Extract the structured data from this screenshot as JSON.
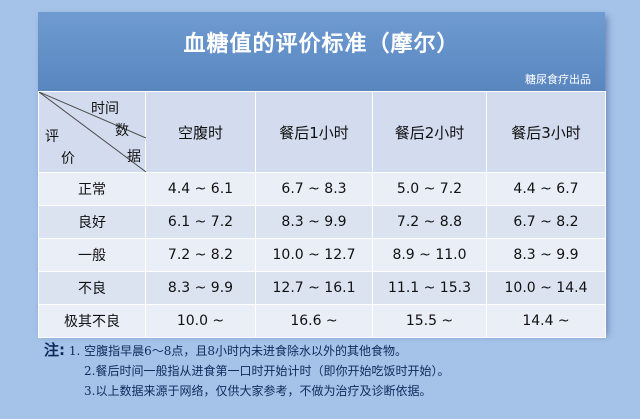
{
  "title": "血糖值的评价标准（摩尔）",
  "source": "糖尿食疗出品",
  "corner": {
    "time": "时间",
    "data_1": "数",
    "data_2": "据",
    "eval_1": "评",
    "eval_2": "价"
  },
  "columns": [
    "空腹时",
    "餐后1小时",
    "餐后2小时",
    "餐后3小时"
  ],
  "rows": [
    {
      "label": "正常",
      "values": [
        "4.4 ~ 6.1",
        "6.7 ~ 8.3",
        "5.0 ~ 7.2",
        "4.4 ~ 6.7"
      ]
    },
    {
      "label": "良好",
      "values": [
        "6.1 ~ 7.2",
        "8.3 ~ 9.9",
        "7.2 ~ 8.8",
        "6.7 ~ 8.2"
      ]
    },
    {
      "label": "一般",
      "values": [
        "7.2 ~ 8.2",
        "10.0 ~ 12.7",
        "8.9 ~ 11.0",
        "8.3 ~ 9.9"
      ]
    },
    {
      "label": "不良",
      "values": [
        "8.3 ~ 9.9",
        "12.7 ~ 16.1",
        "11.1 ~ 15.3",
        "10.0 ~ 14.4"
      ]
    },
    {
      "label": "极其不良",
      "values": [
        "10.0 ~",
        "16.6 ~",
        "15.5 ~",
        "14.4 ~"
      ]
    }
  ],
  "notes": {
    "lead": "注:",
    "items": [
      "1. 空腹指早晨6～8点，且8小时内未进食除水以外的其他食物。",
      "2.餐后时间一般指从进食第一口时开始计时（即你开始吃饭时开始）。",
      "3.以上数据来源于网络，仅供大家参考，不做为治疗及诊断依据。"
    ]
  }
}
